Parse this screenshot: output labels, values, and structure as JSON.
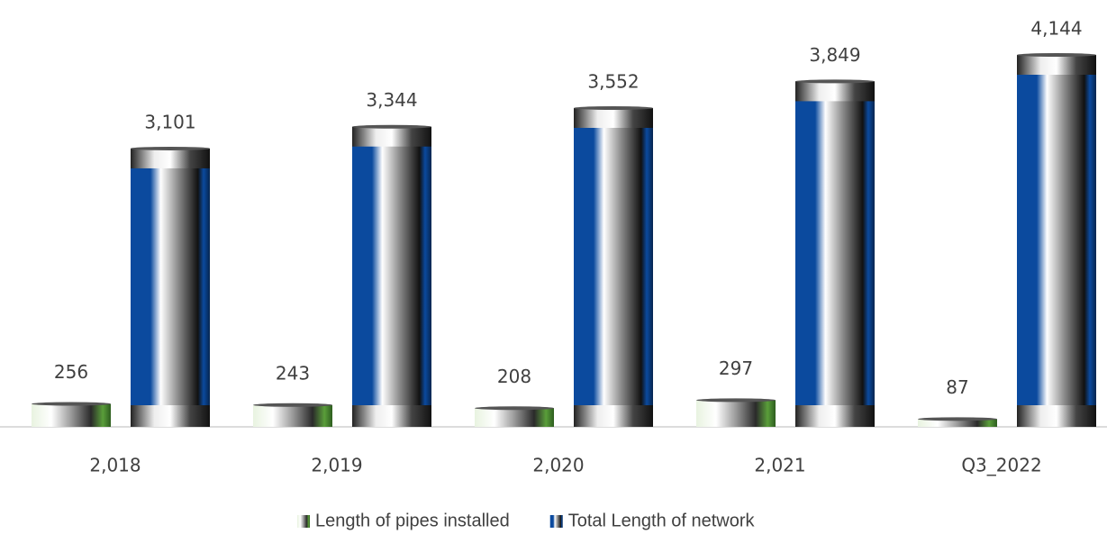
{
  "chart_data": {
    "type": "bar",
    "categories": [
      "2,018",
      "2,019",
      "2,020",
      "2,021",
      "Q3_2022"
    ],
    "series": [
      {
        "name": "Length of pipes installed",
        "color": "#5a9e3a",
        "values": [
          256,
          243,
          208,
          297,
          87
        ]
      },
      {
        "name": "Total Length of network",
        "color": "#0b4a9e",
        "values": [
          3101,
          3344,
          3552,
          3849,
          4144
        ],
        "value_labels": [
          "3,101",
          "3,344",
          "3,552",
          "3,849",
          "4,144"
        ]
      }
    ],
    "legend": "bottom"
  }
}
